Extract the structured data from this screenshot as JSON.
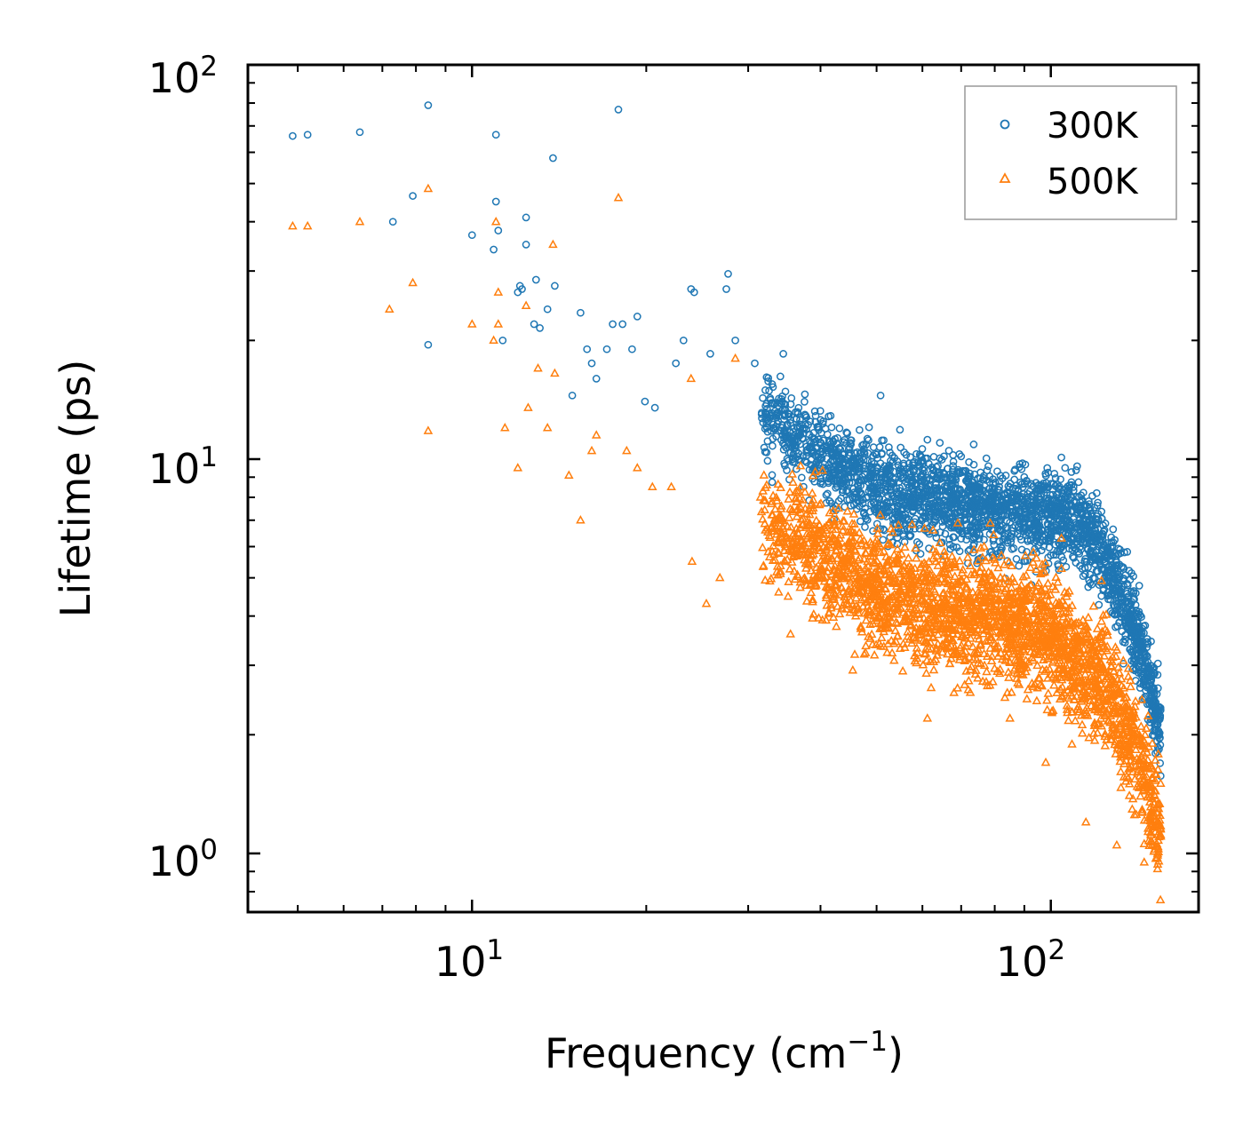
{
  "chart_data": {
    "type": "scatter",
    "x_scale": "log",
    "y_scale": "log",
    "xlabel": {
      "base": "Frequency (cm",
      "superscript": "−1",
      "tail": ")"
    },
    "ylabel": "Lifetime (ps)",
    "xlim": [
      4.1,
      180
    ],
    "ylim": [
      0.71,
      100
    ],
    "x_ticks": [
      {
        "value": 10,
        "base": "10",
        "exp": "1"
      },
      {
        "value": 100,
        "base": "10",
        "exp": "2"
      }
    ],
    "y_ticks": [
      {
        "value": 1,
        "base": "10",
        "exp": "0"
      },
      {
        "value": 10,
        "base": "10",
        "exp": "1"
      },
      {
        "value": 100,
        "base": "10",
        "exp": "2"
      }
    ],
    "legend": {
      "placement": "top-right"
    },
    "series": [
      {
        "name": "300K",
        "marker": "circle",
        "color": "#1f77b4",
        "points": [
          [
            4.9,
            66
          ],
          [
            5.2,
            66.5
          ],
          [
            6.4,
            67.5
          ],
          [
            7.3,
            40
          ],
          [
            7.9,
            46.5
          ],
          [
            8.4,
            79
          ],
          [
            8.4,
            19.5
          ],
          [
            10.0,
            37
          ],
          [
            10.9,
            34
          ],
          [
            11.0,
            66.5
          ],
          [
            11.0,
            45
          ],
          [
            11.1,
            38
          ],
          [
            11.3,
            20
          ],
          [
            12.0,
            26.5
          ],
          [
            12.1,
            27.5
          ],
          [
            12.2,
            27
          ],
          [
            12.4,
            41
          ],
          [
            12.4,
            35
          ],
          [
            12.8,
            22
          ],
          [
            12.9,
            28.5
          ],
          [
            13.1,
            21.5
          ],
          [
            13.5,
            24
          ],
          [
            13.8,
            58
          ],
          [
            13.9,
            27.5
          ],
          [
            14.9,
            14.5
          ],
          [
            15.4,
            23.5
          ],
          [
            15.8,
            19
          ],
          [
            16.1,
            17.5
          ],
          [
            16.4,
            16
          ],
          [
            17.1,
            19
          ],
          [
            17.5,
            22
          ],
          [
            17.9,
            77
          ],
          [
            18.2,
            22
          ],
          [
            18.9,
            19
          ],
          [
            19.3,
            23
          ],
          [
            19.9,
            14
          ],
          [
            20.7,
            13.5
          ],
          [
            22.5,
            17.5
          ],
          [
            23.2,
            20
          ],
          [
            23.9,
            27
          ],
          [
            24.2,
            26.5
          ],
          [
            25.8,
            18.5
          ],
          [
            27.5,
            27
          ],
          [
            27.7,
            29.5
          ],
          [
            28.5,
            20
          ],
          [
            30.8,
            17.5
          ],
          [
            33.0,
            15.5
          ],
          [
            34.5,
            18.5
          ],
          [
            50.8,
            14.5
          ],
          [
            61.2,
            11.2
          ],
          [
            64.3,
            11
          ],
          [
            69.5,
            10.3
          ],
          [
            104.3,
            10.1
          ],
          [
            108.6,
            8.6
          ],
          [
            120.0,
            8.2
          ],
          [
            134.0,
            5.8
          ],
          [
            145.0,
            3.2
          ],
          [
            148.0,
            2.4
          ]
        ]
      },
      {
        "name": "500K",
        "marker": "triangle",
        "color": "#ff7f0e",
        "points": [
          [
            4.9,
            39
          ],
          [
            5.2,
            39
          ],
          [
            6.4,
            40
          ],
          [
            7.2,
            24
          ],
          [
            7.9,
            28
          ],
          [
            8.4,
            48.5
          ],
          [
            8.4,
            11.8
          ],
          [
            10.0,
            22
          ],
          [
            10.9,
            20
          ],
          [
            11.0,
            40
          ],
          [
            11.1,
            26.5
          ],
          [
            11.1,
            22
          ],
          [
            11.4,
            12
          ],
          [
            12.0,
            9.5
          ],
          [
            12.4,
            24.5
          ],
          [
            12.5,
            13.5
          ],
          [
            13.0,
            17
          ],
          [
            13.5,
            12
          ],
          [
            13.8,
            35
          ],
          [
            13.9,
            16.5
          ],
          [
            14.7,
            9.1
          ],
          [
            15.4,
            7
          ],
          [
            16.1,
            10.5
          ],
          [
            16.4,
            11.5
          ],
          [
            17.9,
            46
          ],
          [
            18.5,
            10.5
          ],
          [
            19.3,
            9.5
          ],
          [
            20.5,
            8.5
          ],
          [
            22.1,
            8.5
          ],
          [
            23.9,
            16
          ],
          [
            24.0,
            5.5
          ],
          [
            25.4,
            4.3
          ],
          [
            26.8,
            5
          ],
          [
            28.5,
            18
          ],
          [
            31.5,
            8
          ],
          [
            35.5,
            3.6
          ],
          [
            40.9,
            3.9
          ],
          [
            47.6,
            3.2
          ],
          [
            55.5,
            2.9
          ],
          [
            61.2,
            2.2
          ],
          [
            72.0,
            2.6
          ],
          [
            85.0,
            2.2
          ],
          [
            98.0,
            1.7
          ],
          [
            104.3,
            6.3
          ],
          [
            115.0,
            1.2
          ],
          [
            130.0,
            1.05
          ],
          [
            145.0,
            0.95
          ]
        ]
      }
    ]
  }
}
